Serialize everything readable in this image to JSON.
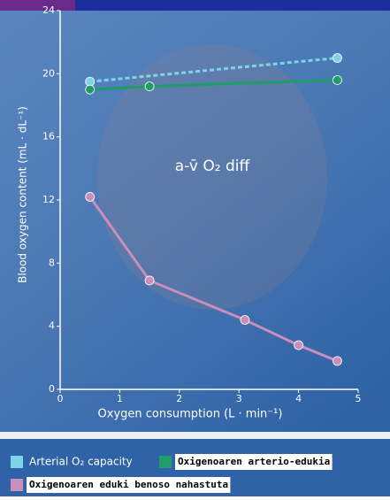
{
  "chart_data": {
    "type": "line",
    "xlabel": "Oxygen consumption (L · min⁻¹)",
    "ylabel": "Blood oxygen content (mL · dL⁻¹)",
    "annotation": "a-v̄ O₂ diff",
    "xlim": [
      0,
      5
    ],
    "xticks": [
      0,
      1,
      2,
      3,
      4,
      5
    ],
    "ylim": [
      0,
      24
    ],
    "yticks": [
      0,
      4,
      8,
      12,
      16,
      20,
      24
    ],
    "legend": "bottom",
    "series": [
      {
        "name": "Arterial O₂ capacity",
        "color": "#7fd3e6",
        "dashed": true,
        "x": [
          0.5,
          4.65
        ],
        "values": [
          19.5,
          21.0
        ]
      },
      {
        "name": "Oxigenoaren arterio-edukia",
        "color": "#1f9e6a",
        "dashed": false,
        "x": [
          0.5,
          1.5,
          4.65
        ],
        "values": [
          19.0,
          19.2,
          19.6
        ]
      },
      {
        "name": "Oxigenoaren eduki benoso nahastuta",
        "color": "#c98fb8",
        "dashed": false,
        "x": [
          0.5,
          1.5,
          3.1,
          4.0,
          4.65
        ],
        "values": [
          12.2,
          6.9,
          4.4,
          2.8,
          1.8
        ]
      }
    ]
  }
}
